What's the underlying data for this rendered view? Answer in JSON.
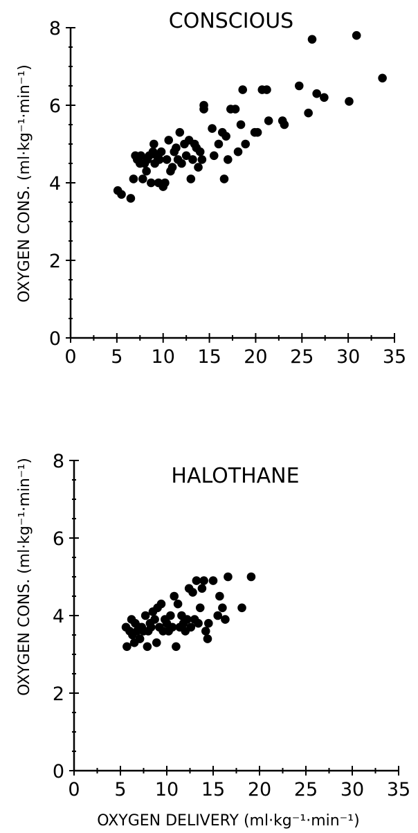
{
  "chart_data": [
    {
      "type": "scatter",
      "title": "CONSCIOUS",
      "xlabel": "",
      "ylabel": "OXYGEN CONS. (ml·kg⁻¹·min⁻¹)",
      "xlim": [
        0,
        35
      ],
      "ylim": [
        0,
        8
      ],
      "xticks": [
        "0",
        "5",
        "10",
        "15",
        "20",
        "25",
        "30",
        "35"
      ],
      "yticks": [
        "0",
        "2",
        "4",
        "6",
        "8"
      ],
      "grid": false,
      "x": [
        5.1,
        5.5,
        6.5,
        6.8,
        7.0,
        7.2,
        7.5,
        7.6,
        7.8,
        8.0,
        8.2,
        8.3,
        8.5,
        8.7,
        8.9,
        9.0,
        9.1,
        9.3,
        9.5,
        9.6,
        9.8,
        10.0,
        10.2,
        10.4,
        10.6,
        10.8,
        11.0,
        11.2,
        11.4,
        11.6,
        11.8,
        12.0,
        12.3,
        12.5,
        12.8,
        13.0,
        13.2,
        13.4,
        13.6,
        13.8,
        14.0,
        14.2,
        14.4,
        14.4,
        15.3,
        15.5,
        16.0,
        16.4,
        16.6,
        16.8,
        17.0,
        17.3,
        17.8,
        18.1,
        18.4,
        18.6,
        18.9,
        19.9,
        20.2,
        20.7,
        21.2,
        21.4,
        22.9,
        23.1,
        24.7,
        25.7,
        26.1,
        26.6,
        27.4,
        30.1,
        30.9,
        33.7
      ],
      "y": [
        3.8,
        3.7,
        3.6,
        4.1,
        4.7,
        4.6,
        4.5,
        4.7,
        4.1,
        4.5,
        4.3,
        4.6,
        4.7,
        4.0,
        4.8,
        5.0,
        4.5,
        4.7,
        4.0,
        4.6,
        4.8,
        3.9,
        4.0,
        4.6,
        5.1,
        4.3,
        4.4,
        4.8,
        4.9,
        4.6,
        5.3,
        4.5,
        5.0,
        4.7,
        5.1,
        4.1,
        4.6,
        5.0,
        4.9,
        4.4,
        4.8,
        4.6,
        6.0,
        5.9,
        5.4,
        4.7,
        5.0,
        5.3,
        4.1,
        5.2,
        4.6,
        5.9,
        5.9,
        4.8,
        5.5,
        6.4,
        5.0,
        5.3,
        5.3,
        6.4,
        6.4,
        5.6,
        5.6,
        5.5,
        6.5,
        5.8,
        7.7,
        6.3,
        6.2,
        6.1,
        7.8,
        6.7
      ]
    },
    {
      "type": "scatter",
      "title": "HALOTHANE",
      "xlabel": "OXYGEN DELIVERY (ml·kg⁻¹·min⁻¹)",
      "ylabel": "OXYGEN CONS. (ml·kg⁻¹·min⁻¹)",
      "xlim": [
        0,
        35
      ],
      "ylim": [
        0,
        8
      ],
      "xticks": [
        "0",
        "5",
        "10",
        "15",
        "20",
        "25",
        "30",
        "35"
      ],
      "yticks": [
        "0",
        "2",
        "4",
        "6",
        "8"
      ],
      "grid": false,
      "x": [
        5.6,
        5.7,
        6.0,
        6.2,
        6.3,
        6.5,
        6.6,
        6.8,
        7.0,
        7.1,
        7.3,
        7.5,
        7.7,
        7.9,
        8.0,
        8.2,
        8.3,
        8.5,
        8.7,
        8.9,
        9.0,
        9.2,
        9.4,
        9.6,
        9.8,
        10.0,
        10.2,
        10.4,
        10.6,
        10.8,
        11.0,
        11.2,
        11.4,
        11.6,
        11.8,
        12.0,
        12.2,
        12.4,
        12.6,
        12.8,
        13.0,
        13.2,
        13.4,
        13.6,
        13.8,
        14.0,
        14.2,
        14.4,
        14.5,
        15.0,
        15.5,
        15.7,
        16.0,
        16.3,
        16.6,
        18.1,
        19.1
      ],
      "y": [
        3.7,
        3.2,
        3.6,
        3.9,
        3.5,
        3.3,
        3.8,
        3.6,
        3.7,
        3.4,
        3.7,
        3.6,
        4.0,
        3.2,
        3.6,
        3.8,
        3.7,
        4.1,
        3.9,
        3.3,
        4.2,
        3.7,
        4.3,
        3.6,
        3.9,
        3.8,
        3.6,
        4.0,
        3.7,
        4.5,
        3.2,
        4.3,
        3.7,
        4.0,
        3.8,
        3.6,
        3.9,
        4.7,
        3.7,
        4.6,
        3.9,
        4.9,
        3.8,
        4.2,
        4.7,
        4.9,
        3.6,
        3.4,
        3.8,
        4.9,
        4.0,
        4.5,
        4.2,
        3.9,
        5.0,
        4.2,
        5.0
      ]
    }
  ]
}
